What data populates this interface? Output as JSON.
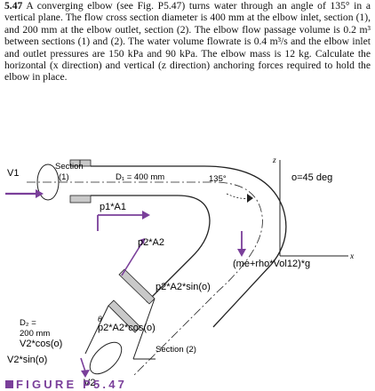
{
  "problem": {
    "number": "5.47",
    "text": "A converging elbow (see Fig. P5.47) turns water through an angle of 135° in a vertical plane. The flow cross section diameter is 400 mm at the elbow inlet, section (1), and 200 mm at the elbow outlet, section (2). The elbow flow passage volume is 0.2 m³ between sections (1) and (2). The water volume flowrate is 0.4 m³/s and the elbow inlet and outlet pressures are 150 kPa and 90 kPa. The elbow mass is 12 kg. Calculate the horizontal (x direction) and vertical (z direction) anchoring forces required to hold the elbow in place."
  },
  "figure": {
    "section1_label": "Section",
    "section1_num": "(1)",
    "d1_label": "D₁ = 400 mm",
    "angle_label": "135°",
    "z_axis": "z",
    "x_axis": "x",
    "d2_label_1": "D₂ =",
    "d2_label_2": "200 mm",
    "section2_label": "Section (2)",
    "theta_label": "θ",
    "annotations": {
      "v1": "V1",
      "p1a1": "p1*A1",
      "p2a2": "p2*A2",
      "weight": "(me+rho*Vol12)*g",
      "theta_def": "o=45 deg",
      "p2a2_sin": "p2*A2*sin(o)",
      "p2a2_cos": "p2*A2*cos(o)",
      "v2cos": "V2*cos(o)",
      "v2sin": "V2*sin(o)",
      "v2": "V2"
    },
    "colors": {
      "purple": "#7a3f9a",
      "gray_fill": "#c9c9c9",
      "line": "#222222"
    }
  },
  "caption": {
    "text": "FIGURE P5.47"
  }
}
